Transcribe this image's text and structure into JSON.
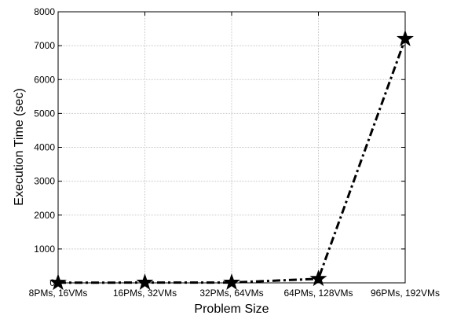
{
  "chart_data": {
    "type": "line",
    "title": "",
    "xlabel": "Problem Size",
    "ylabel": "Execution Time (sec)",
    "categories": [
      "8PMs, 16VMs",
      "16PMs, 32VMs",
      "32PMs, 64VMs",
      "64PMs, 128VMs",
      "96PMs, 192VMs"
    ],
    "series": [
      {
        "values": [
          5,
          8,
          10,
          120,
          7200
        ]
      }
    ],
    "ylim": [
      0,
      8000
    ],
    "yticks": [
      0,
      1000,
      2000,
      3000,
      4000,
      5000,
      6000,
      7000,
      8000
    ],
    "grid": true,
    "legend": "none",
    "line_style": "dash-dot",
    "marker": "star",
    "line_color": "#000000"
  }
}
